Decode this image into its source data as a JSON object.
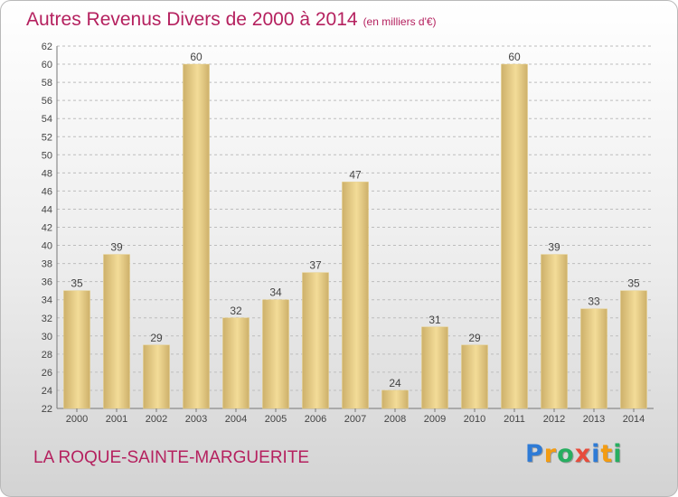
{
  "title": "Autres Revenus Divers de 2000 à 2014",
  "title_unit": "(en milliers d'€)",
  "commune": "LA ROQUE-SAINTE-MARGUERITE",
  "logo": {
    "letters": [
      "P",
      "r",
      "o",
      "x",
      "i",
      "t",
      "i"
    ],
    "colors": [
      "#2e7bd6",
      "#f39c12",
      "#27ae60",
      "#e74c3c",
      "#2e7bd6",
      "#f39c12",
      "#27ae60"
    ]
  },
  "colors": {
    "title": "#b5215f",
    "bar_light": "#f3dc98",
    "bar_dark": "#cdb06a",
    "grid": "#bdbdbd"
  },
  "chart_data": {
    "type": "bar",
    "title": "Autres Revenus Divers de 2000 à 2014",
    "ylabel": "",
    "xlabel": "",
    "categories": [
      "2000",
      "2001",
      "2002",
      "2003",
      "2004",
      "2005",
      "2006",
      "2007",
      "2008",
      "2009",
      "2010",
      "2011",
      "2012",
      "2013",
      "2014"
    ],
    "values": [
      35,
      39,
      29,
      60,
      32,
      34,
      37,
      47,
      24,
      31,
      29,
      60,
      39,
      33,
      35
    ],
    "ylim": [
      22,
      62
    ],
    "yticks": [
      22,
      24,
      26,
      28,
      30,
      32,
      34,
      36,
      38,
      40,
      42,
      44,
      46,
      48,
      50,
      52,
      54,
      56,
      58,
      60,
      62
    ],
    "grid": true
  }
}
